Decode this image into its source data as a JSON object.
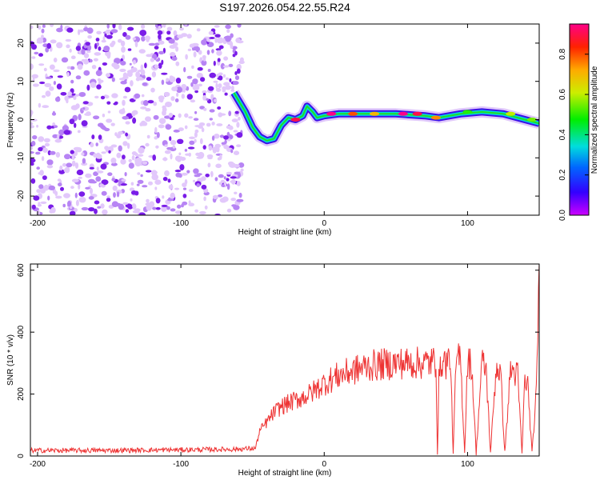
{
  "title": "S197.2026.054.22.55.R24",
  "chart_data": [
    {
      "type": "heatmap",
      "xlabel": "Height of straight line (km)",
      "ylabel": "Frequency (Hz)",
      "xlim": [
        -205,
        150
      ],
      "ylim": [
        -25,
        25
      ],
      "xticks": [
        -200,
        -100,
        0,
        100
      ],
      "yticks": [
        -20,
        -10,
        0,
        10,
        20
      ],
      "colorbar": {
        "label": "Normalized spectral amplitude",
        "range": [
          0,
          0.95
        ],
        "ticks": [
          0.0,
          0.2,
          0.4,
          0.6,
          0.8
        ]
      },
      "noise_region": {
        "x_range": [
          -205,
          -57
        ],
        "y_range": [
          -25,
          25
        ]
      },
      "ridge": [
        {
          "x": -63,
          "y": 7.0
        },
        {
          "x": -55,
          "y": 2.0
        },
        {
          "x": -50,
          "y": -2.0
        },
        {
          "x": -45,
          "y": -4.5
        },
        {
          "x": -40,
          "y": -5.5
        },
        {
          "x": -35,
          "y": -5.0
        },
        {
          "x": -30,
          "y": -1.5
        },
        {
          "x": -25,
          "y": 0.5
        },
        {
          "x": -20,
          "y": 0.0
        },
        {
          "x": -15,
          "y": 1.0
        },
        {
          "x": -12,
          "y": 3.5
        },
        {
          "x": -8,
          "y": 2.0
        },
        {
          "x": -5,
          "y": 0.5
        },
        {
          "x": 0,
          "y": 1.0
        },
        {
          "x": 10,
          "y": 1.5
        },
        {
          "x": 30,
          "y": 1.5
        },
        {
          "x": 50,
          "y": 1.5
        },
        {
          "x": 70,
          "y": 1.0
        },
        {
          "x": 80,
          "y": 0.5
        },
        {
          "x": 95,
          "y": 1.5
        },
        {
          "x": 110,
          "y": 2.0
        },
        {
          "x": 125,
          "y": 1.5
        },
        {
          "x": 140,
          "y": 0.0
        },
        {
          "x": 150,
          "y": -1.0
        }
      ],
      "hotspots": [
        {
          "x": -20,
          "y": 0.0,
          "amp": 0.9
        },
        {
          "x": 5,
          "y": 1.5,
          "amp": 0.95
        },
        {
          "x": 20,
          "y": 1.5,
          "amp": 0.8
        },
        {
          "x": 35,
          "y": 1.5,
          "amp": 0.7
        },
        {
          "x": 55,
          "y": 1.5,
          "amp": 0.95
        },
        {
          "x": 65,
          "y": 1.5,
          "amp": 0.9
        },
        {
          "x": 78,
          "y": 0.5,
          "amp": 0.75
        },
        {
          "x": 100,
          "y": 2.0,
          "amp": 0.5
        },
        {
          "x": 130,
          "y": 1.5,
          "amp": 0.6
        },
        {
          "x": 145,
          "y": 0.0,
          "amp": 0.55
        }
      ]
    },
    {
      "type": "line",
      "xlabel": "Height of straight line (km)",
      "ylabel": "SNR (10 * v/v)",
      "xlim": [
        -205,
        150
      ],
      "ylim": [
        0,
        620
      ],
      "xticks": [
        -200,
        -100,
        0,
        100
      ],
      "yticks": [
        0,
        200,
        400,
        600
      ],
      "color": "#ee3333",
      "series": [
        {
          "x": [
            -205,
            -150,
            -100,
            -60,
            -48,
            -45,
            -40,
            -35,
            -30,
            -20,
            -10,
            0,
            10,
            20,
            30,
            40,
            50,
            60,
            70,
            78,
            79,
            80,
            82,
            85,
            88,
            90,
            92,
            95,
            98,
            100,
            103,
            106,
            110,
            113,
            116,
            120,
            123,
            126,
            130,
            135,
            138,
            140,
            142,
            145,
            148,
            150
          ],
          "y": [
            18,
            18,
            20,
            22,
            25,
            80,
            110,
            140,
            160,
            180,
            200,
            235,
            260,
            275,
            290,
            295,
            300,
            300,
            300,
            305,
            10,
            240,
            310,
            300,
            320,
            10,
            300,
            320,
            10,
            310,
            290,
            10,
            300,
            280,
            10,
            290,
            270,
            10,
            280,
            260,
            10,
            250,
            230,
            10,
            200,
            620
          ]
        }
      ]
    }
  ]
}
